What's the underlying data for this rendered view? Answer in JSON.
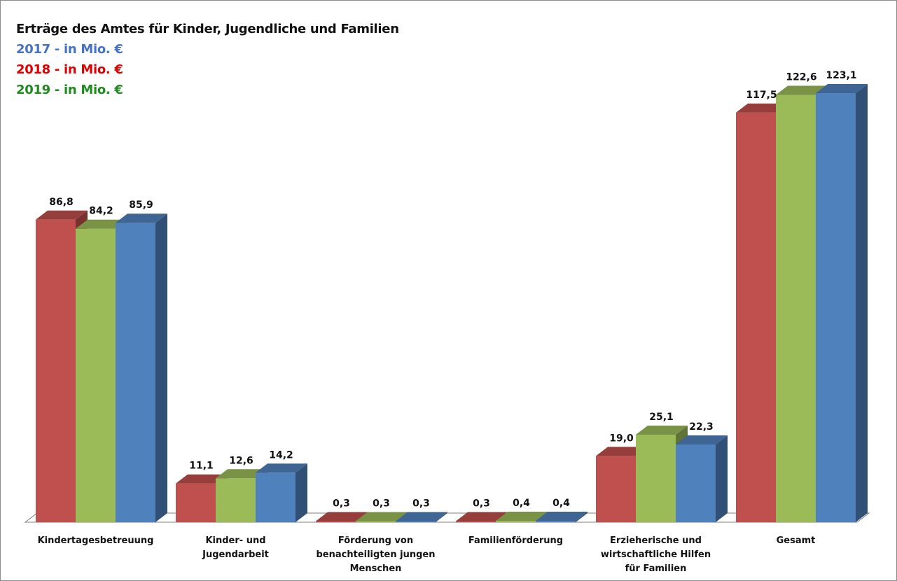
{
  "chart_data": {
    "type": "bar",
    "title": "Erträge des Amtes für Kinder, Jugendliche und Familien",
    "legend_lines": [
      {
        "text": "2017 - in Mio. €",
        "color": "#4472c4"
      },
      {
        "text": "2018 - in Mio. €",
        "color": "#e00000"
      },
      {
        "text": "2019 - in Mio. €",
        "color": "#1e8c1e"
      }
    ],
    "categories": [
      [
        "Kindertagesbetreuung"
      ],
      [
        "Kinder- und",
        "Jugendarbeit"
      ],
      [
        "Förderung von",
        "benachteiligten jungen",
        "Menschen"
      ],
      [
        "Familienförderung"
      ],
      [
        "Erzieherische und",
        "wirtschaftliche Hilfen",
        "für Familien"
      ],
      [
        "Gesamt"
      ]
    ],
    "series": [
      {
        "values": [
          86.8,
          11.1,
          0.3,
          0.3,
          19.0,
          117.5
        ],
        "labels": [
          "86,8",
          "11,1",
          "0,3",
          "0,3",
          "19,0",
          "117,5"
        ],
        "color": "#c0504d"
      },
      {
        "values": [
          84.2,
          12.6,
          0.3,
          0.4,
          25.1,
          122.6
        ],
        "labels": [
          "84,2",
          "12,6",
          "0,3",
          "0,4",
          "25,1",
          "122,6"
        ],
        "color": "#9bbb59"
      },
      {
        "values": [
          85.9,
          14.2,
          0.3,
          0.4,
          22.3,
          123.1
        ],
        "labels": [
          "85,9",
          "14,2",
          "0,3",
          "0,4",
          "22,3",
          "123,1"
        ],
        "color": "#4f81bd"
      }
    ],
    "ylim": [
      0,
      125
    ],
    "grid": false,
    "style": "3d-column"
  }
}
